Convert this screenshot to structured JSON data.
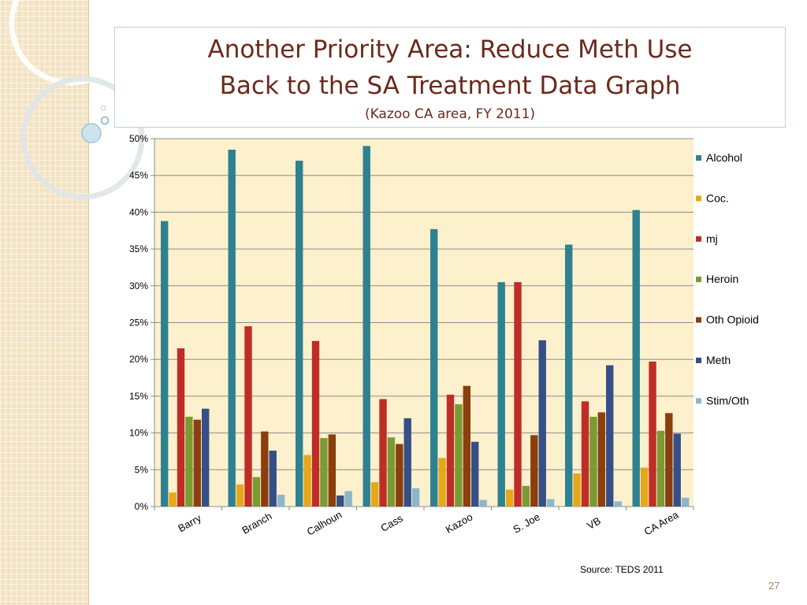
{
  "slide": {
    "title_line1": "Another Priority Area: Reduce Meth Use",
    "title_line2": "Back to the SA Treatment Data Graph",
    "title_line3": "(Kazoo CA area, FY 2011)",
    "source": "Source:  TEDS 2011",
    "page_number": "27"
  },
  "colors": {
    "panel": "#f3e3c3",
    "plot_bg": "#fdf0cc",
    "title": "#6b2a1c"
  },
  "chart_data": {
    "type": "bar",
    "categories": [
      "Barry",
      "Branch",
      "Calhoun",
      "Cass",
      "Kazoo",
      "S. Joe",
      "VB",
      "CA Area"
    ],
    "series": [
      {
        "name": "Alcohol",
        "color": "#2e8190",
        "values": [
          38.8,
          48.5,
          47.0,
          49.0,
          37.7,
          30.5,
          35.6,
          40.3
        ]
      },
      {
        "name": "Coc.",
        "color": "#e5a81c",
        "values": [
          1.9,
          3.0,
          7.0,
          3.3,
          6.6,
          2.3,
          4.5,
          5.3
        ]
      },
      {
        "name": "mj",
        "color": "#bf2d27",
        "values": [
          21.5,
          24.5,
          22.5,
          14.6,
          15.2,
          30.5,
          14.3,
          19.7
        ]
      },
      {
        "name": "Heroin",
        "color": "#7a9b33",
        "values": [
          12.2,
          4.0,
          9.3,
          9.4,
          13.9,
          2.8,
          12.2,
          10.3
        ]
      },
      {
        "name": "Oth Opioid",
        "color": "#8b3e0e",
        "values": [
          11.8,
          10.2,
          9.8,
          8.5,
          16.4,
          9.7,
          12.8,
          12.7
        ]
      },
      {
        "name": "Meth",
        "color": "#354f87",
        "values": [
          13.3,
          7.6,
          1.5,
          12.0,
          8.8,
          22.6,
          19.2,
          9.9
        ]
      },
      {
        "name": "Stim/Oth",
        "color": "#8fb5c8",
        "values": [
          0.0,
          1.6,
          2.1,
          2.5,
          0.9,
          1.0,
          0.7,
          1.2
        ]
      }
    ],
    "ylim": [
      0,
      50
    ],
    "yticks": [
      "0%",
      "5%",
      "10%",
      "15%",
      "20%",
      "25%",
      "30%",
      "35%",
      "40%",
      "45%",
      "50%"
    ],
    "grid": true,
    "legend_position": "right"
  }
}
